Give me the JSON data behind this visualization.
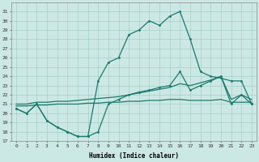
{
  "xlabel": "Humidex (Indice chaleur)",
  "xlim": [
    -0.5,
    23.5
  ],
  "ylim": [
    17,
    32
  ],
  "yticks": [
    17,
    18,
    19,
    20,
    21,
    22,
    23,
    24,
    25,
    26,
    27,
    28,
    29,
    30,
    31
  ],
  "xticks": [
    0,
    1,
    2,
    3,
    4,
    5,
    6,
    7,
    8,
    9,
    10,
    11,
    12,
    13,
    14,
    15,
    16,
    17,
    18,
    19,
    20,
    21,
    22,
    23
  ],
  "bg_color": "#cce8e4",
  "line_color": "#1a7a6e",
  "curve1_x": [
    0,
    1,
    2,
    3,
    4,
    5,
    6,
    7,
    8,
    9,
    10,
    11,
    12,
    13,
    14,
    15,
    16,
    17,
    18,
    19,
    20,
    21,
    22,
    23
  ],
  "curve1_y": [
    20.5,
    20.0,
    21.0,
    19.2,
    18.5,
    18.0,
    17.5,
    17.5,
    23.5,
    25.5,
    26.0,
    28.5,
    29.0,
    30.0,
    29.5,
    30.5,
    31.0,
    28.0,
    24.5,
    24.0,
    23.8,
    23.5,
    23.5,
    21.0
  ],
  "curve2_x": [
    0,
    1,
    2,
    3,
    4,
    5,
    6,
    7,
    8,
    9,
    10,
    11,
    12,
    13,
    14,
    15,
    16,
    17,
    18,
    19,
    20,
    21,
    22,
    23
  ],
  "curve2_y": [
    20.5,
    20.0,
    21.0,
    19.2,
    18.5,
    18.0,
    17.5,
    17.5,
    18.0,
    21.0,
    21.5,
    22.0,
    22.3,
    22.5,
    22.8,
    23.0,
    24.5,
    22.5,
    23.0,
    23.5,
    24.0,
    21.0,
    22.0,
    21.0
  ],
  "curve3_x": [
    0,
    1,
    2,
    3,
    4,
    5,
    6,
    7,
    8,
    9,
    10,
    11,
    12,
    13,
    14,
    15,
    16,
    17,
    18,
    19,
    20,
    21,
    22,
    23
  ],
  "curve3_y": [
    21.0,
    21.0,
    21.2,
    21.2,
    21.3,
    21.3,
    21.4,
    21.5,
    21.6,
    21.7,
    21.8,
    22.0,
    22.2,
    22.4,
    22.6,
    22.8,
    23.2,
    23.0,
    23.3,
    23.6,
    24.0,
    21.5,
    22.0,
    21.5
  ],
  "curve4_x": [
    0,
    1,
    2,
    3,
    4,
    5,
    6,
    7,
    8,
    9,
    10,
    11,
    12,
    13,
    14,
    15,
    16,
    17,
    18,
    19,
    20,
    21,
    22,
    23
  ],
  "curve4_y": [
    20.8,
    20.8,
    20.9,
    20.9,
    21.0,
    21.0,
    21.0,
    21.1,
    21.1,
    21.2,
    21.2,
    21.3,
    21.3,
    21.4,
    21.4,
    21.5,
    21.5,
    21.4,
    21.4,
    21.4,
    21.5,
    21.2,
    21.2,
    21.2
  ]
}
